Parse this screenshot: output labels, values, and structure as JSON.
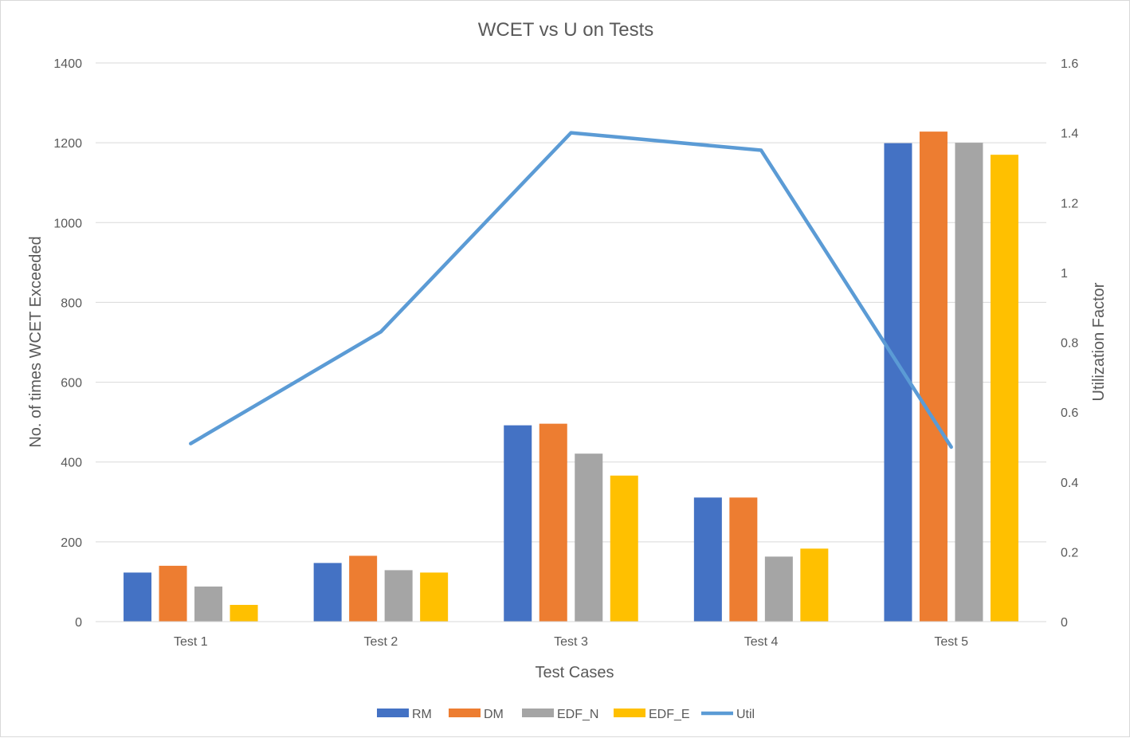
{
  "chart_data": {
    "type": "bar",
    "title": "WCET vs U on Tests",
    "xlabel": "Test Cases",
    "ylabel": "No. of times WCET Exceeded",
    "y2label": "Utilization Factor",
    "categories": [
      "Test 1",
      "Test 2",
      "Test 3",
      "Test 4",
      "Test 5"
    ],
    "ylim": [
      0,
      1400
    ],
    "yticks": [
      "0",
      "200",
      "400",
      "600",
      "800",
      "1000",
      "1200",
      "1400"
    ],
    "y2lim": [
      0,
      1.6
    ],
    "y2ticks": [
      "0",
      "0.2",
      "0.4",
      "0.6",
      "0.8",
      "1",
      "1.2",
      "1.4",
      "1.6"
    ],
    "grid": true,
    "legend_position": "bottom",
    "series": [
      {
        "name": "RM",
        "type": "bar",
        "axis": "left",
        "color": "#4472C4",
        "values": [
          123,
          147,
          492,
          311,
          1199
        ]
      },
      {
        "name": "DM",
        "type": "bar",
        "axis": "left",
        "color": "#ED7D31",
        "values": [
          140,
          165,
          496,
          311,
          1228
        ]
      },
      {
        "name": "EDF_N",
        "type": "bar",
        "axis": "left",
        "color": "#A5A5A5",
        "values": [
          88,
          129,
          421,
          163,
          1200
        ]
      },
      {
        "name": "EDF_E",
        "type": "bar",
        "axis": "left",
        "color": "#FFC000",
        "values": [
          42,
          123,
          366,
          183,
          1170
        ]
      },
      {
        "name": "Util",
        "type": "line",
        "axis": "right",
        "color": "#5B9BD5",
        "values": [
          0.51,
          0.83,
          1.4,
          1.35,
          0.5
        ]
      }
    ]
  }
}
